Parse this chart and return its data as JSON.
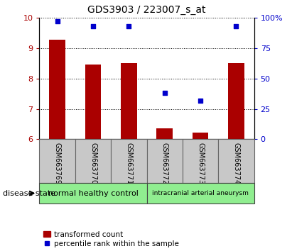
{
  "title": "GDS3903 / 223007_s_at",
  "samples": [
    "GSM663769",
    "GSM663770",
    "GSM663771",
    "GSM663772",
    "GSM663773",
    "GSM663774"
  ],
  "red_values": [
    9.28,
    8.45,
    8.5,
    6.35,
    6.22,
    8.5
  ],
  "blue_values": [
    97,
    93,
    93,
    38,
    32,
    93
  ],
  "ylim_left": [
    6,
    10
  ],
  "ylim_right": [
    0,
    100
  ],
  "yticks_left": [
    6,
    7,
    8,
    9,
    10
  ],
  "yticks_right": [
    0,
    25,
    50,
    75,
    100
  ],
  "ytick_labels_right": [
    "0",
    "25",
    "50",
    "75",
    "100%"
  ],
  "groups": [
    {
      "label": "normal healthy control",
      "color": "#90EE90",
      "start": 0,
      "end": 2
    },
    {
      "label": "intracranial arterial aneurysm",
      "color": "#90EE90",
      "start": 3,
      "end": 5
    }
  ],
  "disease_state_label": "disease state",
  "legend_red": "transformed count",
  "legend_blue": "percentile rank within the sample",
  "bar_color": "#AA0000",
  "dot_color": "#0000CC",
  "bar_width": 0.45,
  "tick_label_area_color": "#C8C8C8",
  "tick_label_area_border": "#666666",
  "group_border": "#444444"
}
